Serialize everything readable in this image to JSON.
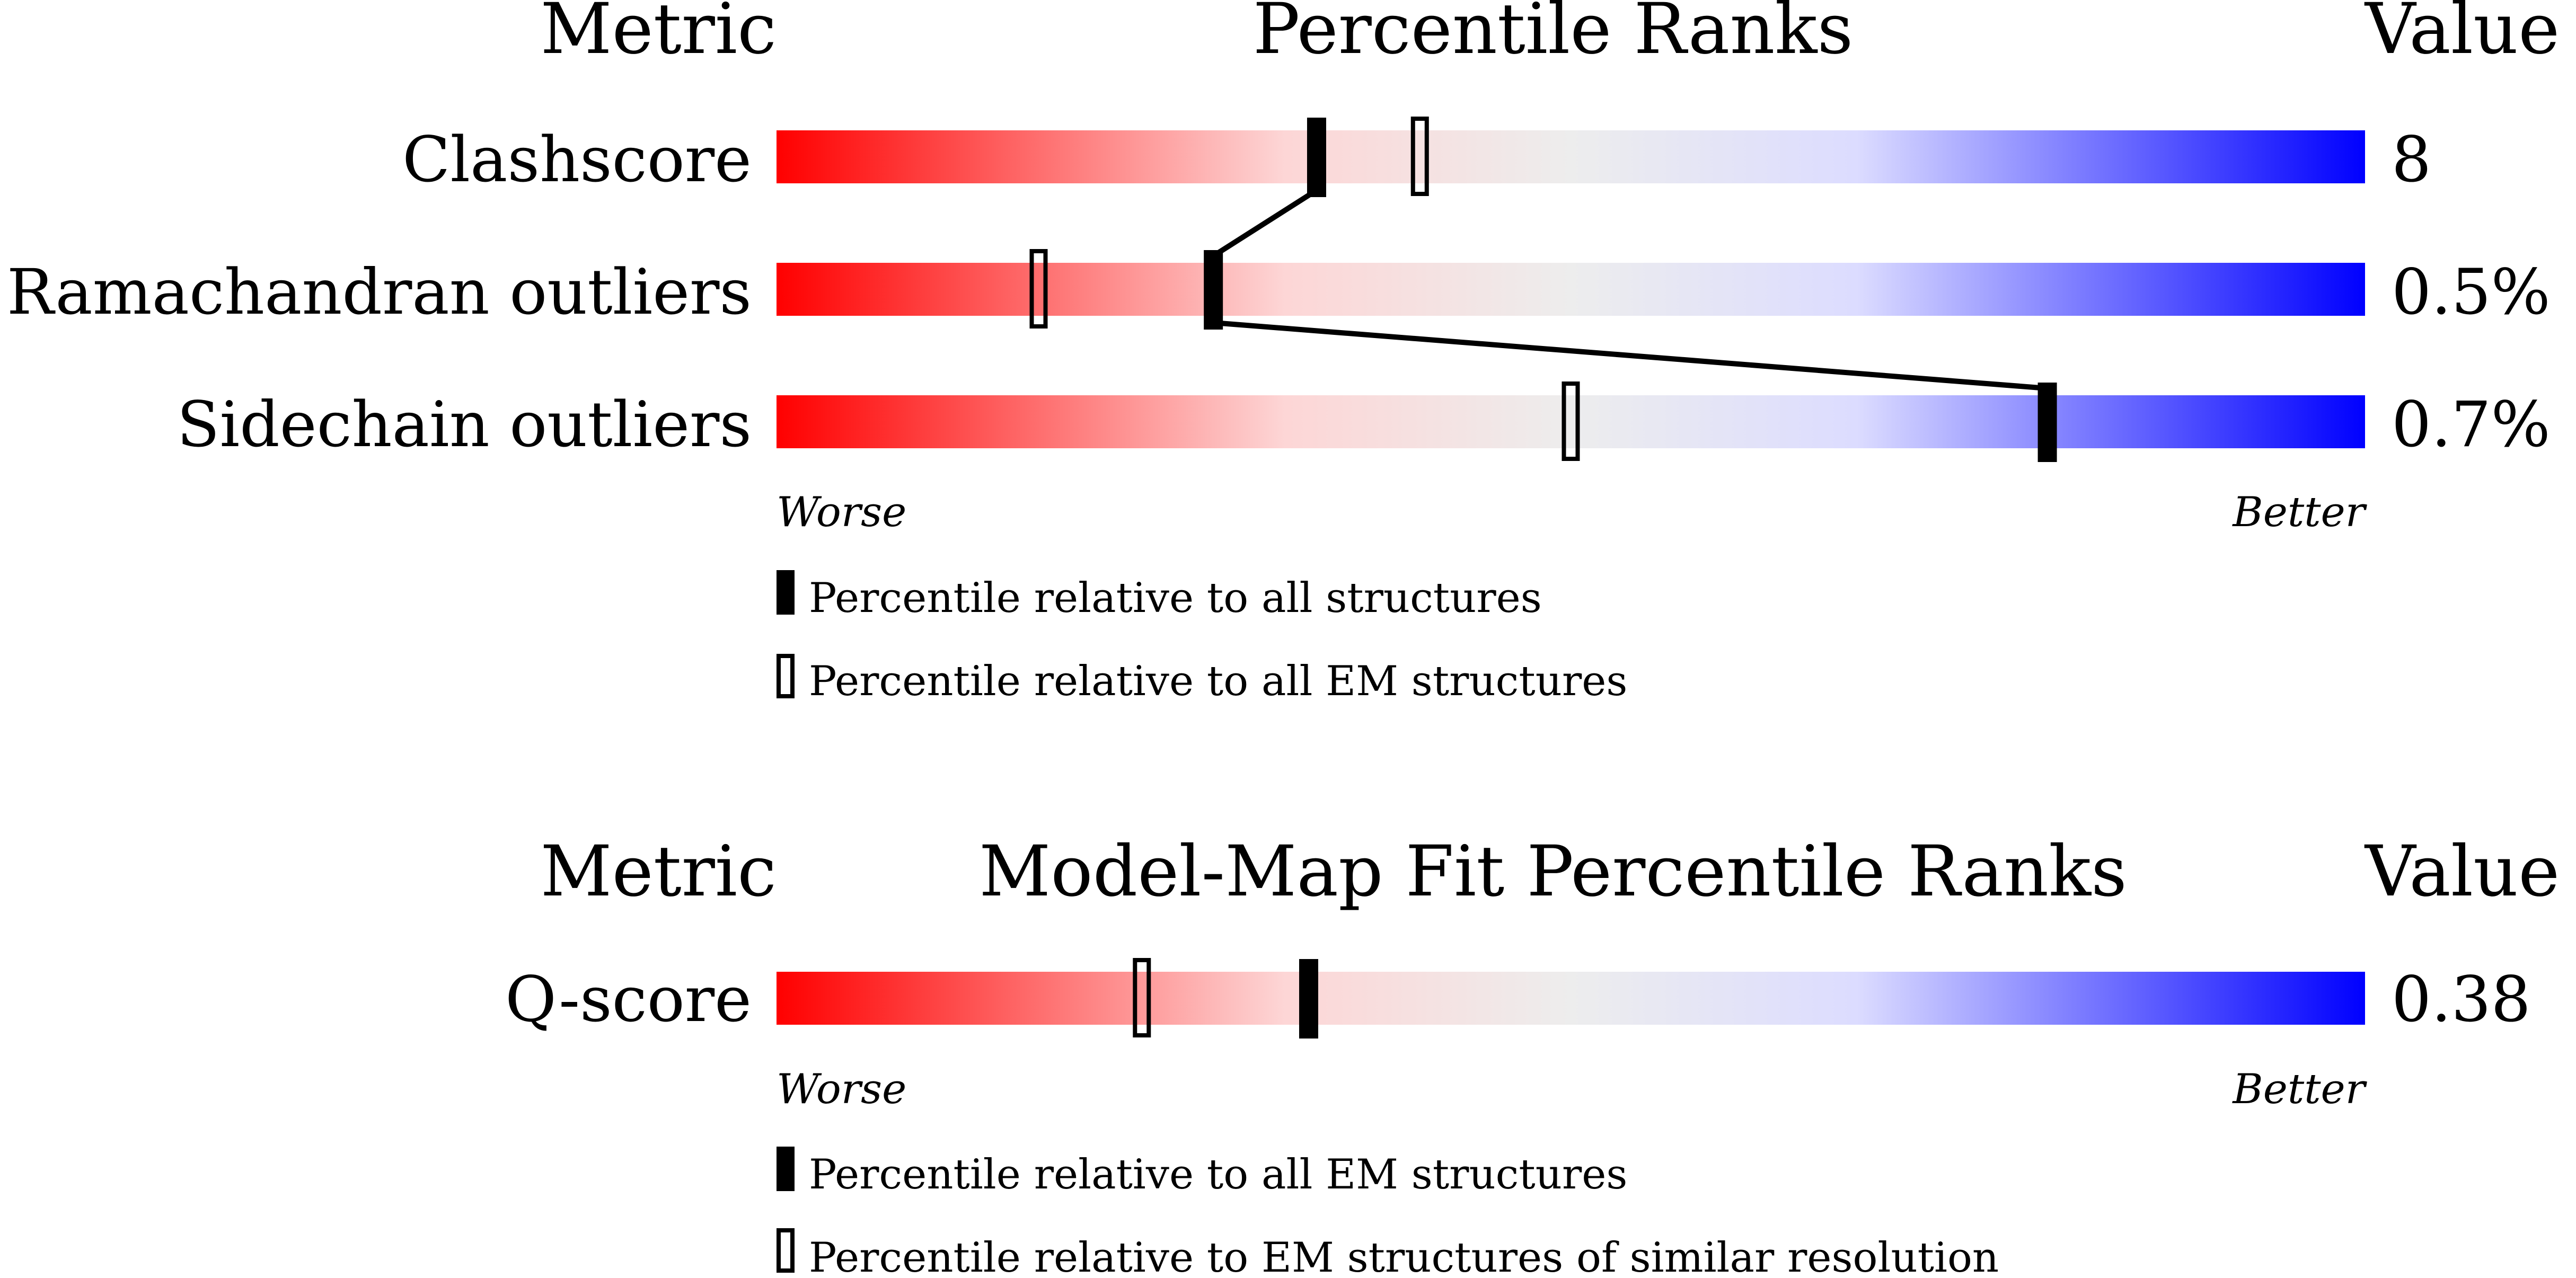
{
  "chart_data": [
    {
      "type": "percentile-slider",
      "header": {
        "metric": "Metric",
        "title": "Percentile Ranks",
        "value": "Value"
      },
      "scale": {
        "left": "Worse",
        "right": "Better",
        "range": [
          0,
          100
        ]
      },
      "rows": [
        {
          "label": "Clashscore",
          "value": "8",
          "all": 34,
          "em": 40.5
        },
        {
          "label": "Ramachandran outliers",
          "value": "0.5%",
          "all": 27.5,
          "em": 16.5
        },
        {
          "label": "Sidechain outliers",
          "value": "0.7%",
          "all": 80,
          "em": 50
        }
      ],
      "legend": [
        {
          "marker": "filled",
          "text": "Percentile relative to all structures"
        },
        {
          "marker": "open",
          "text": "Percentile relative to all EM structures"
        }
      ],
      "connect_all_markers": true
    },
    {
      "type": "percentile-slider",
      "header": {
        "metric": "Metric",
        "title": "Model-Map Fit Percentile Ranks",
        "value": "Value"
      },
      "scale": {
        "left": "Worse",
        "right": "Better",
        "range": [
          0,
          100
        ]
      },
      "rows": [
        {
          "label": "Q-score",
          "value": "0.38",
          "all": 33.5,
          "em": 23
        }
      ],
      "legend": [
        {
          "marker": "filled",
          "text": "Percentile relative to all EM structures"
        },
        {
          "marker": "open",
          "text": "Percentile relative to EM structures of similar resolution"
        }
      ],
      "connect_all_markers": false
    }
  ],
  "colors": {
    "worse": "#ff0000",
    "mid": "#ededed",
    "mid_blue": "#dcdcff",
    "better": "#0000ff",
    "marker": "#000000"
  }
}
